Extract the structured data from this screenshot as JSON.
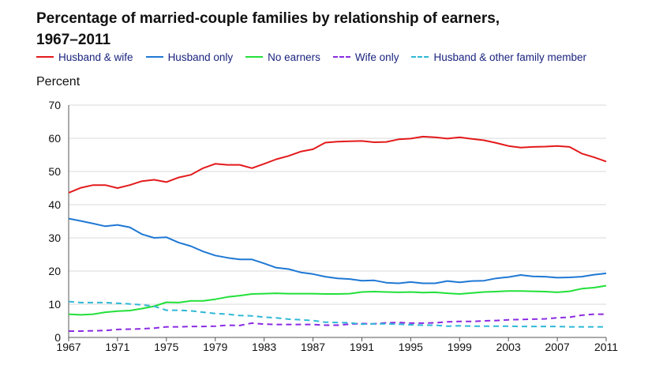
{
  "chart_data": {
    "type": "line",
    "title_line1": "Percentage of married-couple families by relationship of earners,",
    "title_line2": "1967–2011",
    "ylabel": "Percent",
    "xlabel": "",
    "xlim": [
      1967,
      2011
    ],
    "ylim": [
      0,
      70
    ],
    "y_ticks": [
      0,
      10,
      20,
      30,
      40,
      50,
      60,
      70
    ],
    "x_ticks": [
      1967,
      1971,
      1975,
      1979,
      1983,
      1987,
      1991,
      1995,
      1999,
      2003,
      2007,
      2011
    ],
    "grid": "horizontal",
    "legend_position": "top",
    "x": [
      1967,
      1968,
      1969,
      1970,
      1971,
      1972,
      1973,
      1974,
      1975,
      1976,
      1977,
      1978,
      1979,
      1980,
      1981,
      1982,
      1983,
      1984,
      1985,
      1986,
      1987,
      1988,
      1989,
      1990,
      1991,
      1992,
      1993,
      1994,
      1995,
      1996,
      1997,
      1998,
      1999,
      2000,
      2001,
      2002,
      2003,
      2004,
      2005,
      2006,
      2007,
      2008,
      2009,
      2010,
      2011
    ],
    "series": [
      {
        "name": "Husband & wife",
        "color": "#e31a1c",
        "dash": "solid",
        "values": [
          43.6,
          45.1,
          45.9,
          45.9,
          45.0,
          45.9,
          47.1,
          47.5,
          46.8,
          48.2,
          49.0,
          51.0,
          52.3,
          52.0,
          52.0,
          51.0,
          52.3,
          53.7,
          54.7,
          56.0,
          56.7,
          58.7,
          59.0,
          59.1,
          59.2,
          58.8,
          58.9,
          59.7,
          59.9,
          60.5,
          60.3,
          59.9,
          60.3,
          59.8,
          59.4,
          58.6,
          57.7,
          57.2,
          57.4,
          57.5,
          57.7,
          57.4,
          55.4,
          54.3,
          53.0
        ]
      },
      {
        "name": "Husband only",
        "color": "#1f78d4",
        "dash": "solid",
        "values": [
          35.8,
          35.1,
          34.3,
          33.5,
          33.9,
          33.2,
          31.1,
          30.0,
          30.2,
          28.6,
          27.5,
          25.9,
          24.7,
          24.0,
          23.5,
          23.5,
          22.3,
          21.0,
          20.6,
          19.6,
          19.1,
          18.3,
          17.8,
          17.6,
          17.1,
          17.2,
          16.5,
          16.3,
          16.7,
          16.3,
          16.3,
          17.0,
          16.6,
          17.0,
          17.1,
          17.8,
          18.2,
          18.8,
          18.4,
          18.3,
          18.0,
          18.1,
          18.3,
          18.9,
          19.3
        ]
      },
      {
        "name": "No earners",
        "color": "#22e03a",
        "dash": "solid",
        "values": [
          7.0,
          6.8,
          7.0,
          7.6,
          7.9,
          8.1,
          8.7,
          9.4,
          10.6,
          10.5,
          11.0,
          11.0,
          11.5,
          12.2,
          12.6,
          13.1,
          13.2,
          13.3,
          13.2,
          13.2,
          13.2,
          13.1,
          13.1,
          13.2,
          13.7,
          13.8,
          13.7,
          13.6,
          13.7,
          13.5,
          13.6,
          13.3,
          13.1,
          13.4,
          13.7,
          13.8,
          14.0,
          14.0,
          13.9,
          13.8,
          13.6,
          13.9,
          14.7,
          15.0,
          15.6
        ]
      },
      {
        "name": "Wife only",
        "color": "#8a2be2",
        "dash": "dashed",
        "values": [
          1.9,
          1.9,
          2.0,
          2.1,
          2.4,
          2.5,
          2.6,
          2.8,
          3.2,
          3.2,
          3.3,
          3.3,
          3.4,
          3.7,
          3.6,
          4.3,
          4.0,
          3.9,
          3.9,
          3.9,
          3.9,
          3.7,
          3.7,
          4.0,
          4.2,
          4.1,
          4.4,
          4.5,
          4.3,
          4.3,
          4.4,
          4.7,
          4.8,
          4.8,
          5.0,
          5.1,
          5.3,
          5.4,
          5.5,
          5.6,
          5.9,
          6.1,
          6.7,
          7.0,
          7.0
        ]
      },
      {
        "name": "Husband & other family member",
        "color": "#2fb8d6",
        "dash": "dashed",
        "values": [
          10.8,
          10.5,
          10.5,
          10.5,
          10.3,
          10.1,
          9.8,
          9.4,
          8.2,
          8.2,
          8.0,
          7.6,
          7.2,
          7.0,
          6.6,
          6.5,
          6.1,
          5.9,
          5.5,
          5.3,
          5.1,
          4.6,
          4.5,
          4.4,
          4.0,
          4.1,
          4.1,
          4.0,
          3.8,
          3.7,
          3.7,
          3.4,
          3.5,
          3.4,
          3.4,
          3.4,
          3.4,
          3.3,
          3.3,
          3.3,
          3.3,
          3.2,
          3.2,
          3.2,
          3.2
        ]
      }
    ]
  }
}
